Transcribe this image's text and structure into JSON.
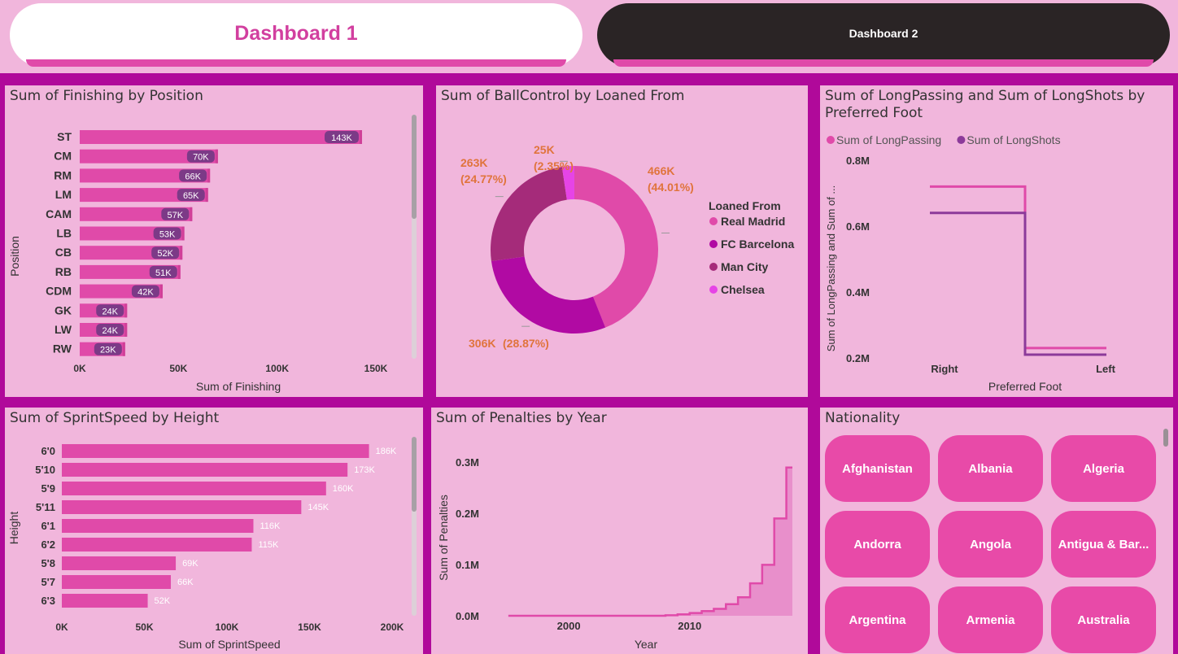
{
  "tabs": [
    {
      "label": "Dashboard 1",
      "active": true
    },
    {
      "label": "Dashboard 2",
      "active": false
    }
  ],
  "colors": {
    "background": "#f1b6dc",
    "divider": "#b0099a",
    "bar": "#e04aa9",
    "label_bubble": "#7c3a87",
    "active_tab_text": "#d23f9f",
    "inactive_tab_bg": "#2a2425"
  },
  "finishing": {
    "title": "Sum of Finishing by Position",
    "chart_data": {
      "type": "bar",
      "orientation": "horizontal",
      "categories": [
        "ST",
        "CM",
        "RM",
        "LM",
        "CAM",
        "LB",
        "CB",
        "RB",
        "CDM",
        "GK",
        "LW",
        "RW"
      ],
      "values": [
        143000,
        70000,
        66000,
        65000,
        57000,
        53000,
        52000,
        51000,
        42000,
        24000,
        24000,
        23000
      ],
      "data_labels": [
        "143K",
        "70K",
        "66K",
        "65K",
        "57K",
        "53K",
        "52K",
        "51K",
        "42K",
        "24K",
        "24K",
        "23K"
      ],
      "xlabel": "Sum of Finishing",
      "ylabel": "Position",
      "xlim": [
        0,
        150000
      ],
      "ticks": [
        "0K",
        "50K",
        "100K",
        "150K"
      ]
    }
  },
  "ballcontrol": {
    "title": "Sum of BallControl by Loaned From",
    "legend_title": "Loaned From",
    "chart_data": {
      "type": "pie",
      "donut": true,
      "categories": [
        "Real Madrid",
        "FC Barcelona",
        "Man City",
        "Chelsea"
      ],
      "values": [
        466000,
        306000,
        263000,
        25000
      ],
      "percents": [
        44.01,
        28.87,
        24.77,
        2.35
      ],
      "colors": [
        "#e04aa9",
        "#b10aa3",
        "#a52b7a",
        "#e644e6"
      ],
      "data_labels": [
        "466K (44.01%)",
        "306K (28.87%)",
        "263K (24.77%)",
        "25K (2.35%)"
      ]
    }
  },
  "longpassing": {
    "title": "Sum of LongPassing and Sum of LongShots by Preferred Foot",
    "chart_data": {
      "type": "line",
      "categories": [
        "Right",
        "Left"
      ],
      "series": [
        {
          "name": "Sum of LongPassing",
          "values": [
            720000,
            230000
          ],
          "color": "#e04aa9"
        },
        {
          "name": "Sum of LongShots",
          "values": [
            640000,
            210000
          ],
          "color": "#8c3a9a"
        }
      ],
      "xlabel": "Preferred Foot",
      "ylabel": "Sum of LongPassing and Sum of ...",
      "ylim": [
        200000,
        800000
      ],
      "ticks": [
        "0.2M",
        "0.4M",
        "0.6M",
        "0.8M"
      ],
      "legend_position": "top-left"
    }
  },
  "sprintspeed": {
    "title": "Sum of SprintSpeed by Height",
    "chart_data": {
      "type": "bar",
      "orientation": "horizontal",
      "categories": [
        "6'0",
        "5'10",
        "5'9",
        "5'11",
        "6'1",
        "6'2",
        "5'8",
        "5'7",
        "6'3"
      ],
      "values": [
        186000,
        173000,
        160000,
        145000,
        116000,
        115000,
        69000,
        66000,
        52000
      ],
      "data_labels": [
        "186K",
        "173K",
        "160K",
        "145K",
        "116K",
        "115K",
        "69K",
        "66K",
        "52K"
      ],
      "xlabel": "Sum of SprintSpeed",
      "ylabel": "Height",
      "xlim": [
        0,
        200000
      ],
      "ticks": [
        "0K",
        "50K",
        "100K",
        "150K",
        "200K"
      ]
    }
  },
  "penalties": {
    "title": "Sum of Penalties by Year",
    "chart_data": {
      "type": "area",
      "step": true,
      "x": [
        1995,
        1997,
        1999,
        2001,
        2003,
        2005,
        2007,
        2008,
        2009,
        2010,
        2011,
        2012,
        2013,
        2014,
        2015,
        2016,
        2017,
        2018
      ],
      "values": [
        0,
        0,
        0,
        0,
        0,
        0,
        0,
        1000,
        3000,
        6000,
        10000,
        15000,
        25000,
        40000,
        70000,
        110000,
        210000,
        320000
      ],
      "xlabel": "Year",
      "ylabel": "Sum of Penalties",
      "ylim": [
        0,
        330000
      ],
      "ticks": [
        "0.0M",
        "0.1M",
        "0.2M",
        "0.3M"
      ],
      "xticks": [
        "2000",
        "2010"
      ]
    }
  },
  "nationality": {
    "title": "Nationality",
    "items": [
      "Afghanistan",
      "Albania",
      "Algeria",
      "Andorra",
      "Angola",
      "Antigua & Bar...",
      "Argentina",
      "Armenia",
      "Australia"
    ]
  }
}
